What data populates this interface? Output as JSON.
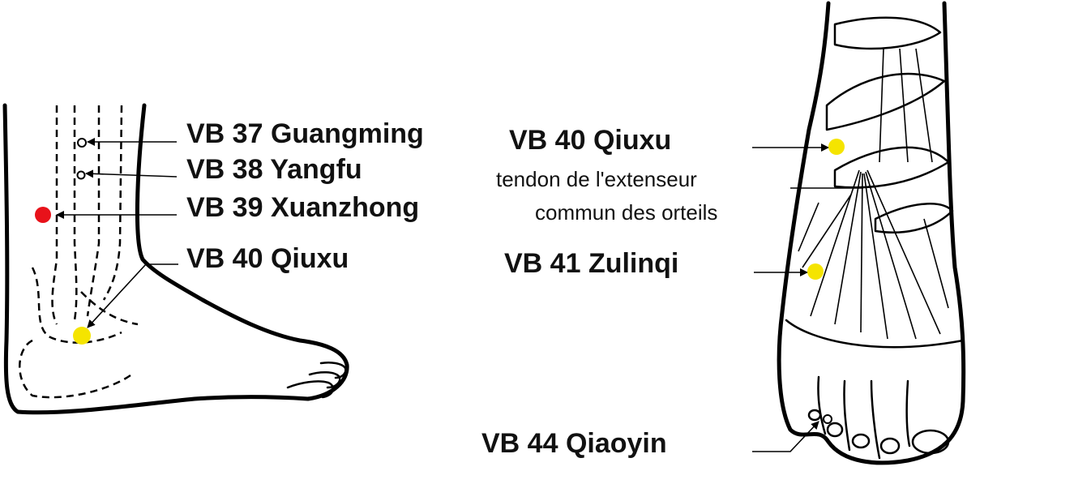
{
  "labels": {
    "vb37": "VB 37 Guangming",
    "vb38": "VB 38 Yangfu",
    "vb39": "VB 39 Xuanzhong",
    "vb40_side": "VB 40 Qiuxu",
    "vb40_top": "VB 40 Qiuxu",
    "tendon_line1": "tendon de l'extenseur",
    "tendon_line2": "commun des orteils",
    "vb41": "VB 41 Zulinqi",
    "vb44": "VB 44 Qiaoyin"
  },
  "colors": {
    "point_yellow": "#f5e400",
    "point_red": "#e8121a",
    "ink": "#000000"
  }
}
